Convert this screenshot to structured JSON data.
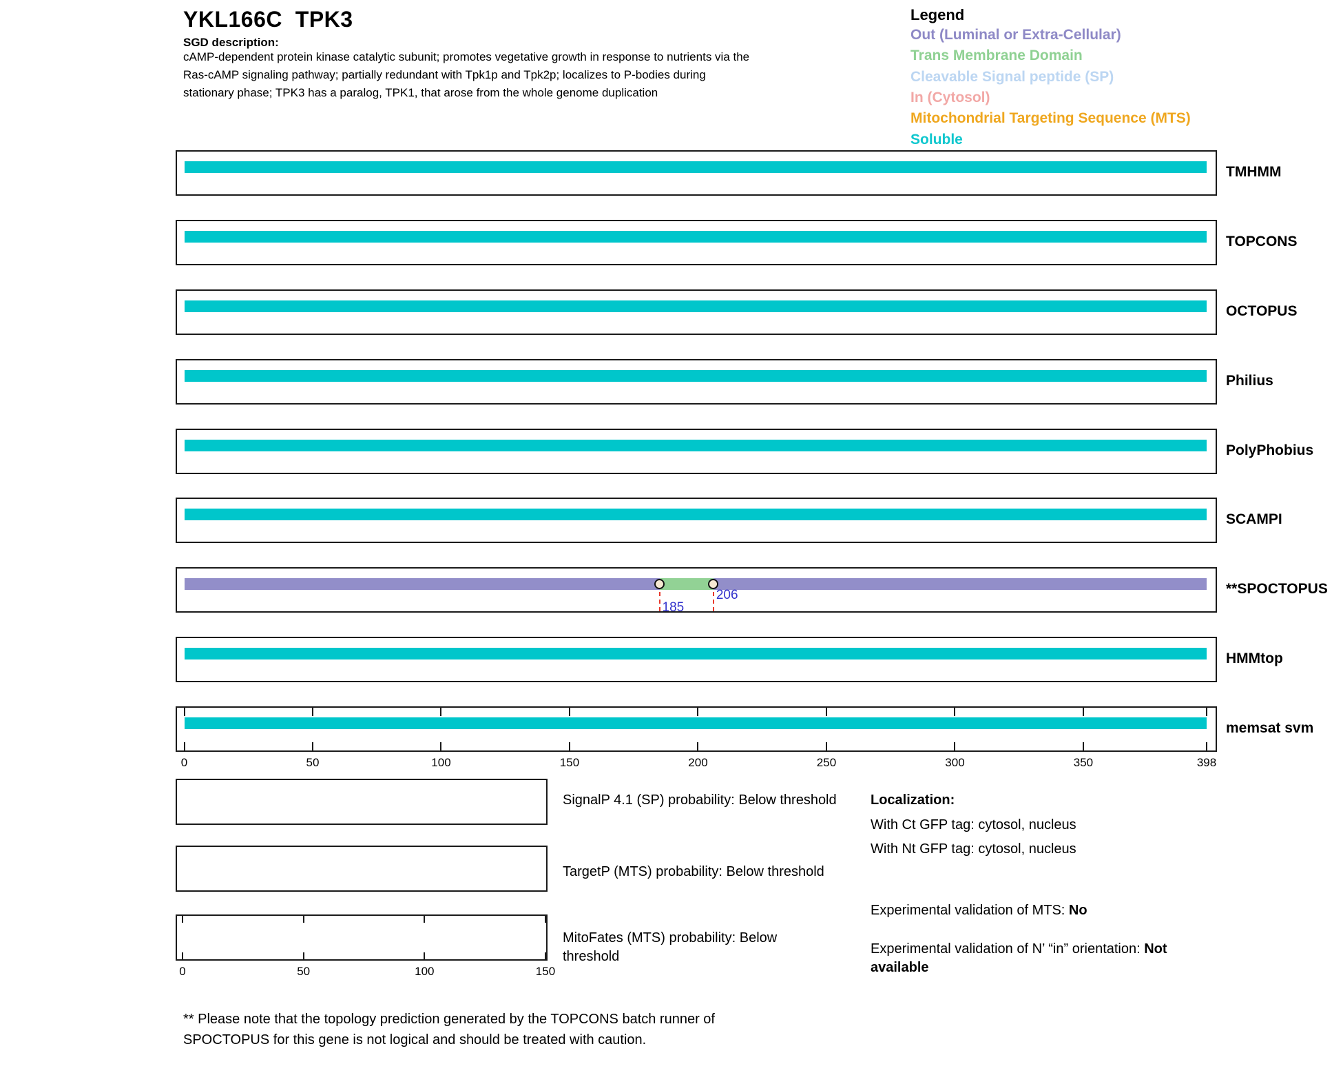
{
  "header": {
    "title": "YKL166C  TPK3",
    "sgd_label": "SGD description:",
    "description_lines": [
      "cAMP-dependent protein kinase catalytic subunit; promotes vegetative growth in response to nutrients via the",
      "Ras-cAMP signaling pathway; partially redundant with Tpk1p and Tpk2p; localizes to P-bodies during",
      "stationary phase; TPK3 has a paralog, TPK1, that arose from the whole genome duplication"
    ]
  },
  "legend": {
    "title": "Legend",
    "items": [
      {
        "label": "Out (Luminal or Extra-Cellular)",
        "color": "#8E89C6"
      },
      {
        "label": "Trans Membrane Domain",
        "color": "#8FD193"
      },
      {
        "label": "Cleavable Signal peptide (SP)",
        "color": "#BCD6F2"
      },
      {
        "label": "In (Cytosol)",
        "color": "#F2A8A6"
      },
      {
        "label": "Mitochondrial Targeting Sequence (MTS)",
        "color": "#EFA71F"
      },
      {
        "label": "Soluble",
        "color": "#0FC7CE"
      }
    ]
  },
  "chart_data": {
    "type": "protein-topology-tracks",
    "protein_id": "YKL166C",
    "gene": "TPK3",
    "sequence_length": 398,
    "x_axis": {
      "ticks": [
        0,
        50,
        100,
        150,
        200,
        250,
        300,
        350,
        398
      ]
    },
    "region_colors": {
      "out": "#928EC9",
      "tm": "#92D295",
      "sp": "#BCD6F2",
      "in": "#F2A8A6",
      "mts": "#EFA71F",
      "soluble": "#00C6CB"
    },
    "marker_style": {
      "fill": "#F6E9D2",
      "line_color": "#E8392C",
      "label_color": "#3333CC"
    },
    "tracks": [
      {
        "name": "TMHMM",
        "segments": [
          {
            "region": "soluble",
            "start": 0,
            "end": 398
          }
        ]
      },
      {
        "name": "TOPCONS",
        "segments": [
          {
            "region": "soluble",
            "start": 0,
            "end": 398
          }
        ]
      },
      {
        "name": "OCTOPUS",
        "segments": [
          {
            "region": "soluble",
            "start": 0,
            "end": 398
          }
        ]
      },
      {
        "name": "Philius",
        "segments": [
          {
            "region": "soluble",
            "start": 0,
            "end": 398
          }
        ]
      },
      {
        "name": "PolyPhobius",
        "segments": [
          {
            "region": "soluble",
            "start": 0,
            "end": 398
          }
        ]
      },
      {
        "name": "SCAMPI",
        "segments": [
          {
            "region": "soluble",
            "start": 0,
            "end": 398
          }
        ]
      },
      {
        "name": "**SPOCTOPUS",
        "segments": [
          {
            "region": "out",
            "start": 0,
            "end": 185
          },
          {
            "region": "tm",
            "start": 185,
            "end": 206
          },
          {
            "region": "out",
            "start": 206,
            "end": 398
          }
        ],
        "markers": [
          {
            "pos": 185,
            "label": "185"
          },
          {
            "pos": 206,
            "label": "206"
          }
        ]
      },
      {
        "name": "HMMtop",
        "segments": [
          {
            "region": "soluble",
            "start": 0,
            "end": 398
          }
        ]
      },
      {
        "name": "memsat svm",
        "segments": [
          {
            "region": "soluble",
            "start": 0,
            "end": 398
          }
        ],
        "show_axis": true
      }
    ],
    "probability_plots": [
      {
        "label": "SignalP 4.1 (SP) probability: Below threshold",
        "series": []
      },
      {
        "label": "TargetP (MTS) probability: Below threshold",
        "series": []
      },
      {
        "label": "MitoFates (MTS) probability: Below\nthreshold",
        "x_ticks": [
          0,
          50,
          100,
          150
        ],
        "series": []
      }
    ]
  },
  "localization": {
    "heading": "Localization:",
    "ct_line": "With Ct GFP tag: cytosol, nucleus",
    "nt_line": "With Nt GFP tag: cytosol, nucleus"
  },
  "validation": {
    "mts_prefix": "Experimental validation of MTS: ",
    "mts_value": "No",
    "orientation_prefix": "Experimental validation of N’ “in” orientation: ",
    "orientation_value": "Not available"
  },
  "footnote_lines": [
    "** Please note that the topology prediction generated by the TOPCONS batch runner of",
    "SPOCTOPUS for this gene is not logical and should be treated with caution."
  ]
}
